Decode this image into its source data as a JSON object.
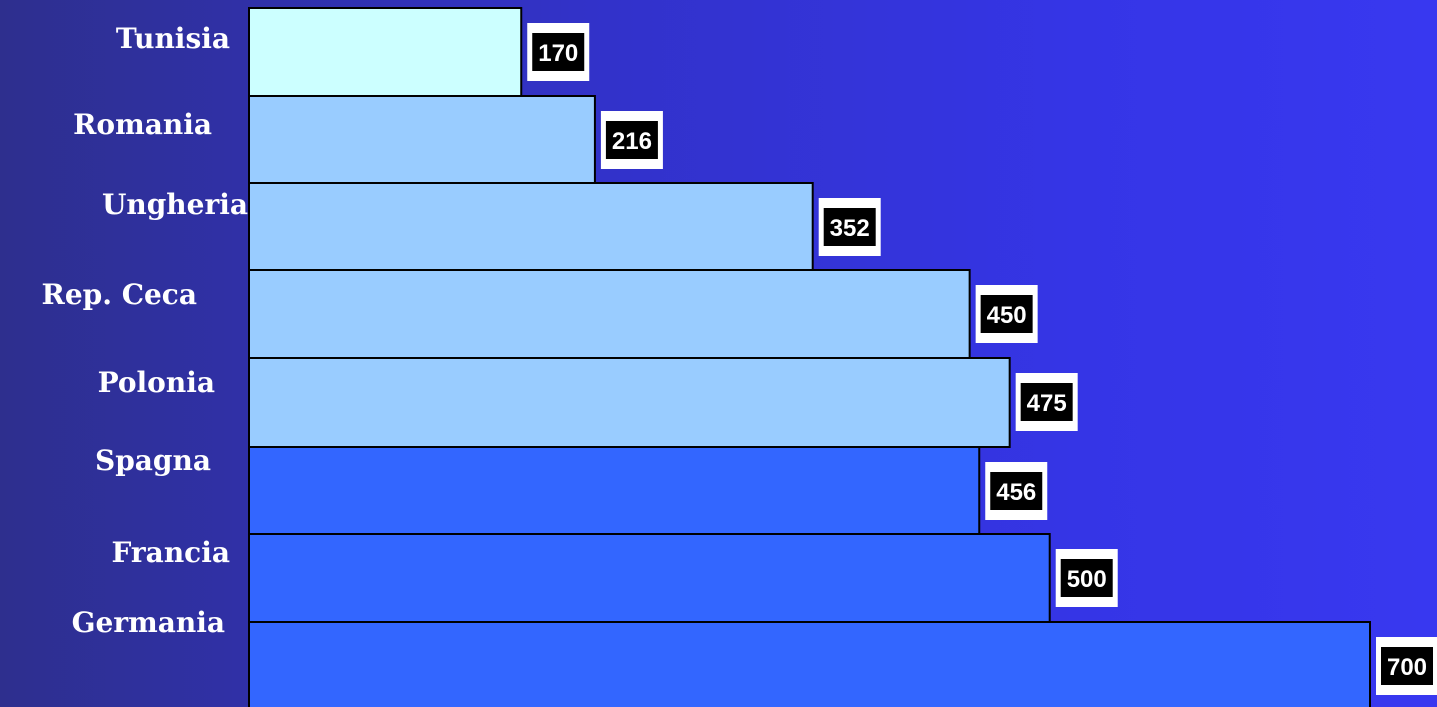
{
  "chart_data": {
    "type": "bar",
    "orientation": "horizontal",
    "categories": [
      "Tunisia",
      "Romania",
      "Ungheria",
      "Rep. Ceca",
      "Polonia",
      "Spagna",
      "Francia",
      "Germania"
    ],
    "values": [
      170,
      216,
      352,
      450,
      475,
      456,
      500,
      700
    ],
    "colors": [
      "#ccffff",
      "#99ccff",
      "#99ccff",
      "#99ccff",
      "#99ccff",
      "#3366ff",
      "#3366ff",
      "#3366ff"
    ],
    "xlim": [
      0,
      700
    ],
    "grid": false,
    "data_labels": true
  },
  "colors": {
    "background": "#3333cc",
    "bar_outline": "#000000",
    "label_box_fill": "#000000",
    "label_box_border": "#ffffff",
    "text": "#ffffff"
  }
}
